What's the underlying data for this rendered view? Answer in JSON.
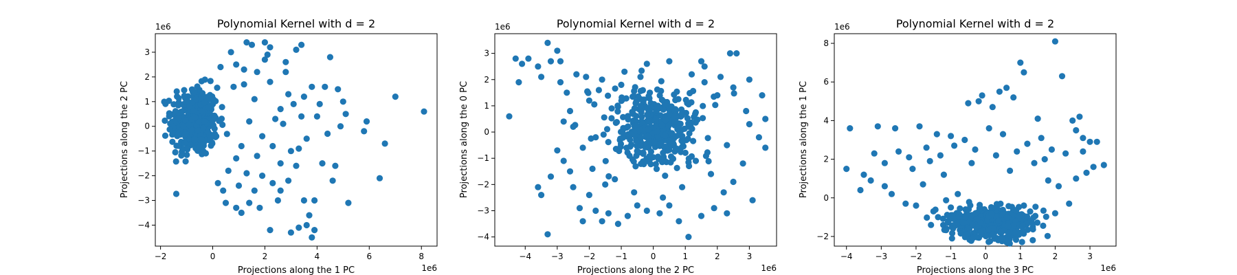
{
  "chart_data": [
    {
      "type": "scatter",
      "title": "Polynomial Kernel with d = 2",
      "xlabel": "Projections along the 1 PC",
      "ylabel": "Projections along the 2 PC",
      "x_offset_label": "1e6",
      "y_offset_label": "1e6",
      "xlim": [
        -2.2,
        8.6
      ],
      "ylim": [
        -4.85,
        3.75
      ],
      "xticks": [
        -2,
        0,
        2,
        4,
        6,
        8
      ],
      "yticks": [
        -4,
        -3,
        -2,
        -1,
        0,
        1,
        2,
        3
      ],
      "grid": false,
      "color": "#1f77b4",
      "cluster": {
        "center": [
          -0.7,
          0.2
        ],
        "spread": [
          0.45,
          0.7
        ],
        "count": 380
      },
      "points": [
        [
          8.1,
          0.6
        ],
        [
          7.0,
          1.2
        ],
        [
          6.6,
          -0.7
        ],
        [
          6.4,
          -2.1
        ],
        [
          5.2,
          -3.1
        ],
        [
          5.9,
          0.2
        ],
        [
          5.8,
          -0.2
        ],
        [
          5.1,
          0.5
        ],
        [
          4.9,
          0.0
        ],
        [
          5.0,
          1.0
        ],
        [
          4.8,
          1.5
        ],
        [
          4.6,
          -2.2
        ],
        [
          4.7,
          -1.6
        ],
        [
          4.3,
          1.6
        ],
        [
          4.2,
          -1.5
        ],
        [
          4.5,
          2.8
        ],
        [
          4.0,
          0.4
        ],
        [
          3.9,
          -4.2
        ],
        [
          3.8,
          -4.5
        ],
        [
          3.6,
          -4.0
        ],
        [
          3.3,
          -4.1
        ],
        [
          3.0,
          -4.3
        ],
        [
          2.2,
          -4.2
        ],
        [
          3.7,
          -3.6
        ],
        [
          3.5,
          -3.0
        ],
        [
          3.9,
          -3.0
        ],
        [
          3.2,
          3.1
        ],
        [
          3.4,
          3.3
        ],
        [
          2.5,
          -3.0
        ],
        [
          2.9,
          -2.2
        ],
        [
          3.0,
          -1.0
        ],
        [
          3.3,
          -0.9
        ],
        [
          3.5,
          1.2
        ],
        [
          3.8,
          1.6
        ],
        [
          2.8,
          2.6
        ],
        [
          1.3,
          3.4
        ],
        [
          1.5,
          3.3
        ],
        [
          2.0,
          3.4
        ],
        [
          2.2,
          3.2
        ],
        [
          0.7,
          3.0
        ],
        [
          1.8,
          -3.3
        ],
        [
          1.4,
          -3.1
        ],
        [
          1.1,
          -3.5
        ],
        [
          0.9,
          -3.3
        ],
        [
          0.5,
          -3.1
        ],
        [
          2.3,
          -2.3
        ],
        [
          1.9,
          -2.0
        ],
        [
          2.6,
          -1.5
        ],
        [
          2.7,
          0.1
        ],
        [
          2.4,
          0.3
        ],
        [
          3.1,
          0.9
        ],
        [
          2.9,
          1.3
        ],
        [
          2.0,
          2.7
        ],
        [
          1.7,
          2.2
        ],
        [
          1.2,
          2.3
        ],
        [
          0.9,
          2.5
        ],
        [
          1.6,
          -2.6
        ],
        [
          1.0,
          -2.4
        ],
        [
          0.4,
          -2.6
        ],
        [
          1.3,
          -1.9
        ],
        [
          2.2,
          1.8
        ],
        [
          3.6,
          -0.5
        ],
        [
          4.1,
          0.9
        ],
        [
          1.6,
          1.1
        ],
        [
          1.9,
          -0.4
        ],
        [
          2.3,
          -0.8
        ],
        [
          2.6,
          0.7
        ],
        [
          1.4,
          0.2
        ],
        [
          1.1,
          -0.8
        ],
        [
          0.8,
          1.6
        ],
        [
          2.8,
          2.2
        ],
        [
          2.1,
          2.9
        ],
        [
          0.3,
          2.4
        ],
        [
          0.2,
          -2.3
        ],
        [
          0.6,
          -1.8
        ],
        [
          1.7,
          -1.2
        ],
        [
          3.2,
          -1.6
        ],
        [
          2.6,
          -2.6
        ],
        [
          3.4,
          0.4
        ],
        [
          4.4,
          -0.3
        ],
        [
          1.2,
          1.7
        ],
        [
          0.9,
          -1.3
        ]
      ]
    },
    {
      "type": "scatter",
      "title": "Polynomial Kernel with d = 2",
      "xlabel": "Projections along the 2 PC",
      "ylabel": "Projections along the 0 PC",
      "x_offset_label": "1e6",
      "y_offset_label": "1e6",
      "xlim": [
        -4.95,
        3.85
      ],
      "ylim": [
        -4.35,
        3.75
      ],
      "xticks": [
        -4,
        -3,
        -2,
        -1,
        0,
        1,
        2,
        3
      ],
      "yticks": [
        -4,
        -3,
        -2,
        -1,
        0,
        1,
        2,
        3
      ],
      "grid": false,
      "color": "#1f77b4",
      "cluster": {
        "center": [
          0.1,
          0.2
        ],
        "spread": [
          0.7,
          0.75
        ],
        "count": 380
      },
      "points": [
        [
          -4.5,
          0.6
        ],
        [
          -4.3,
          2.8
        ],
        [
          -4.1,
          2.6
        ],
        [
          -4.2,
          1.9
        ],
        [
          -3.9,
          2.8
        ],
        [
          -3.6,
          2.5
        ],
        [
          -3.5,
          2.1
        ],
        [
          -3.3,
          3.4
        ],
        [
          -3.3,
          -3.9
        ],
        [
          -3.6,
          -2.1
        ],
        [
          -3.5,
          -2.4
        ],
        [
          -3.2,
          2.7
        ],
        [
          -3.0,
          3.1
        ],
        [
          -2.9,
          2.7
        ],
        [
          -2.7,
          1.5
        ],
        [
          -3.0,
          -0.7
        ],
        [
          -2.8,
          -1.1
        ],
        [
          -3.2,
          -1.7
        ],
        [
          -2.6,
          -1.5
        ],
        [
          -2.5,
          -2.1
        ],
        [
          -2.3,
          -2.9
        ],
        [
          -2.2,
          -3.4
        ],
        [
          -2.0,
          -2.4
        ],
        [
          -1.8,
          -3.0
        ],
        [
          -1.6,
          -3.4
        ],
        [
          -1.4,
          -3.1
        ],
        [
          -1.1,
          -3.5
        ],
        [
          -0.8,
          -3.2
        ],
        [
          -0.5,
          -2.8
        ],
        [
          -0.2,
          -3.0
        ],
        [
          0.2,
          -3.1
        ],
        [
          0.5,
          -2.8
        ],
        [
          0.8,
          -3.4
        ],
        [
          1.1,
          -4.0
        ],
        [
          1.5,
          -3.2
        ],
        [
          1.9,
          -2.9
        ],
        [
          2.3,
          -3.1
        ],
        [
          3.1,
          -2.6
        ],
        [
          2.6,
          3.0
        ],
        [
          2.4,
          3.0
        ],
        [
          2.1,
          2.1
        ],
        [
          1.5,
          2.7
        ],
        [
          1.6,
          2.5
        ],
        [
          0.5,
          2.7
        ],
        [
          -0.2,
          2.6
        ],
        [
          -0.9,
          2.3
        ],
        [
          -1.6,
          2.0
        ],
        [
          -2.4,
          2.2
        ],
        [
          -2.1,
          2.1
        ],
        [
          3.5,
          0.5
        ],
        [
          3.4,
          1.4
        ],
        [
          3.5,
          -0.6
        ],
        [
          3.3,
          -0.2
        ],
        [
          3.0,
          2.0
        ],
        [
          2.9,
          0.8
        ],
        [
          2.8,
          -1.2
        ],
        [
          2.5,
          -1.9
        ],
        [
          2.2,
          -2.3
        ],
        [
          -2.5,
          0.2
        ],
        [
          -2.6,
          0.8
        ],
        [
          -2.2,
          -0.6
        ],
        [
          -2.0,
          1.2
        ],
        [
          -1.9,
          -1.4
        ],
        [
          -1.7,
          1.6
        ],
        [
          -1.5,
          -2.0
        ],
        [
          -1.3,
          0.9
        ],
        [
          -1.2,
          -1.8
        ],
        [
          1.6,
          1.9
        ],
        [
          1.8,
          -1.6
        ],
        [
          2.0,
          1.4
        ],
        [
          2.3,
          -0.5
        ],
        [
          2.5,
          1.7
        ],
        [
          -0.6,
          -2.3
        ],
        [
          0.3,
          -2.5
        ],
        [
          0.9,
          -2.1
        ],
        [
          1.2,
          2.2
        ],
        [
          -1.0,
          1.8
        ],
        [
          -2.9,
          1.9
        ],
        [
          -2.8,
          0.4
        ],
        [
          -1.8,
          -0.2
        ],
        [
          3.0,
          0.3
        ],
        [
          -0.4,
          2.1
        ]
      ]
    },
    {
      "type": "scatter",
      "title": "Polynomial Kernel with d = 2",
      "xlabel": "Projections along the 3 PC",
      "ylabel": "Projections along the 1 PC",
      "x_offset_label": "1e6",
      "y_offset_label": "1e6",
      "xlim": [
        -4.35,
        3.75
      ],
      "ylim": [
        -2.5,
        8.5
      ],
      "xticks": [
        -4,
        -3,
        -2,
        -1,
        0,
        1,
        2,
        3
      ],
      "yticks": [
        -2,
        0,
        2,
        4,
        6,
        8
      ],
      "grid": false,
      "color": "#1f77b4",
      "cluster": {
        "center": [
          0.1,
          -1.3
        ],
        "spread": [
          0.7,
          0.45
        ],
        "count": 400
      },
      "points": [
        [
          2.0,
          8.1
        ],
        [
          1.0,
          7.0
        ],
        [
          1.1,
          6.5
        ],
        [
          2.2,
          6.3
        ],
        [
          0.6,
          5.7
        ],
        [
          0.4,
          5.5
        ],
        [
          -0.2,
          5.0
        ],
        [
          -0.1,
          5.3
        ],
        [
          0.8,
          5.2
        ],
        [
          -0.5,
          4.9
        ],
        [
          0.2,
          4.7
        ],
        [
          2.7,
          4.2
        ],
        [
          2.5,
          4.0
        ],
        [
          1.5,
          4.1
        ],
        [
          -3.1,
          3.7
        ],
        [
          -3.9,
          3.6
        ],
        [
          -2.6,
          3.6
        ],
        [
          -1.9,
          3.7
        ],
        [
          -1.4,
          3.3
        ],
        [
          -1.0,
          3.2
        ],
        [
          2.8,
          3.1
        ],
        [
          3.0,
          2.9
        ],
        [
          2.6,
          3.5
        ],
        [
          3.4,
          1.7
        ],
        [
          3.1,
          1.6
        ],
        [
          2.9,
          1.3
        ],
        [
          -4.0,
          1.5
        ],
        [
          -3.6,
          0.4
        ],
        [
          -3.3,
          0.9
        ],
        [
          -3.2,
          2.3
        ],
        [
          -2.9,
          1.8
        ],
        [
          -2.5,
          2.4
        ],
        [
          -2.2,
          2.1
        ],
        [
          -1.7,
          2.6
        ],
        [
          -1.3,
          2.2
        ],
        [
          -0.9,
          2.7
        ],
        [
          -0.6,
          3.0
        ],
        [
          0.1,
          3.6
        ],
        [
          0.5,
          3.3
        ],
        [
          1.2,
          2.8
        ],
        [
          1.6,
          3.1
        ],
        [
          1.9,
          2.5
        ],
        [
          2.3,
          2.3
        ],
        [
          2.6,
          1.0
        ],
        [
          2.1,
          0.6
        ],
        [
          -2.7,
          0.2
        ],
        [
          -2.3,
          -0.3
        ],
        [
          -1.8,
          0.7
        ],
        [
          -1.5,
          -0.7
        ],
        [
          -1.2,
          1.2
        ],
        [
          -0.8,
          0.2
        ],
        [
          -0.4,
          1.8
        ],
        [
          0.3,
          2.2
        ],
        [
          0.7,
          1.4
        ],
        [
          1.4,
          1.8
        ],
        [
          1.8,
          0.9
        ],
        [
          2.4,
          -0.3
        ],
        [
          -3.5,
          1.2
        ],
        [
          -2.9,
          0.6
        ],
        [
          -2.0,
          -0.4
        ],
        [
          -1.0,
          -0.5
        ],
        [
          1.1,
          -0.4
        ],
        [
          2.0,
          -0.8
        ],
        [
          0.9,
          2.4
        ],
        [
          -0.3,
          2.5
        ],
        [
          1.7,
          2.0
        ],
        [
          -2.1,
          1.5
        ],
        [
          -1.6,
          1.9
        ],
        [
          2.8,
          2.4
        ],
        [
          3.2,
          2.9
        ]
      ]
    }
  ]
}
